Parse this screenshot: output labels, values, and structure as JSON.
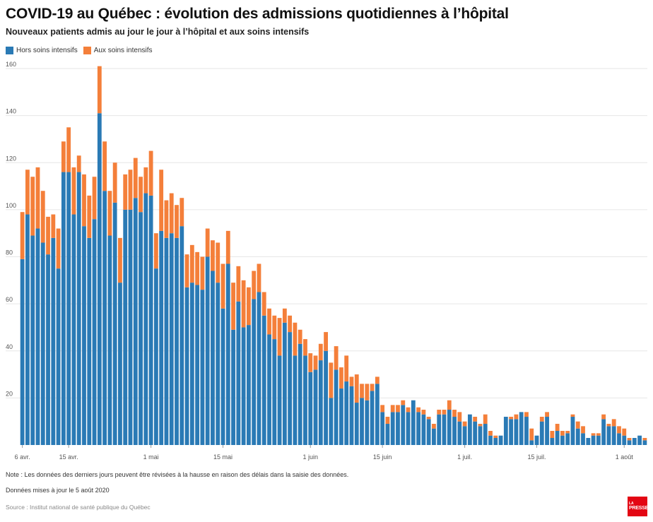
{
  "title": "COVID-19 au Québec : évolution des admissions quotidiennes à l’hôpital",
  "subtitle": "Nouveaux patients admis au jour le jour à l’hôpital et aux soins intensifs",
  "note": "Note : Les données des derniers jours peuvent être révisées à la hausse en raison des délais dans la saisie des données.",
  "updated": "Données mises à jour le 5 août 2020",
  "source": "Source : Institut national de santé publique du Québec",
  "logo": {
    "line1": "LA",
    "line2": "PRESSE"
  },
  "colors": {
    "hors": "#2a7ab5",
    "soins": "#f47f3a",
    "grid": "#e6e6e6"
  },
  "chart_data": {
    "type": "bar",
    "stacked": true,
    "ylim": [
      0,
      160
    ],
    "yticks": [
      20,
      40,
      60,
      80,
      100,
      120,
      140,
      160
    ],
    "grid": true,
    "legend_position": "top-left",
    "xticks": [
      {
        "label": "6 avr.",
        "index": 0
      },
      {
        "label": "15 avr.",
        "index": 9
      },
      {
        "label": "1 mai",
        "index": 25
      },
      {
        "label": "15 mai",
        "index": 39
      },
      {
        "label": "1 juin",
        "index": 56
      },
      {
        "label": "15 juin",
        "index": 70
      },
      {
        "label": "1 juil.",
        "index": 86
      },
      {
        "label": "15 juil.",
        "index": 100
      },
      {
        "label": "1 août",
        "index": 117
      }
    ],
    "series": [
      {
        "name": "Hors soins intensifs",
        "values": [
          79,
          98,
          89,
          92,
          86,
          81,
          88,
          75,
          116,
          116,
          98,
          116,
          93,
          88,
          96,
          141,
          108,
          89,
          103,
          69,
          100,
          100,
          105,
          99,
          107,
          106,
          75,
          91,
          88,
          90,
          88,
          93,
          67,
          69,
          68,
          66,
          80,
          74,
          69,
          58,
          77,
          49,
          61,
          50,
          51,
          62,
          65,
          55,
          47,
          45,
          38,
          52,
          48,
          38,
          43,
          38,
          31,
          32,
          36,
          40,
          20,
          32,
          24,
          27,
          25,
          18,
          20,
          19,
          23,
          26,
          14,
          9,
          14,
          14,
          17,
          14,
          19,
          14,
          13,
          11,
          7,
          13,
          13,
          15,
          12,
          10,
          8,
          13,
          10,
          8,
          9,
          4,
          3,
          4,
          12,
          11,
          11,
          14,
          12,
          2,
          4,
          10,
          12,
          3,
          6,
          4,
          5,
          12,
          7,
          5,
          3,
          4,
          4,
          11,
          8,
          8,
          5,
          4,
          2,
          3,
          4,
          2
        ],
        "total": [
          99,
          117,
          114,
          118,
          108,
          97,
          98,
          92,
          129,
          135,
          118,
          123,
          115,
          106,
          114,
          161,
          129,
          108,
          120,
          88,
          115,
          117,
          122,
          114,
          118,
          125,
          90,
          117,
          104,
          107,
          102,
          105,
          81,
          85,
          82,
          80,
          92,
          87,
          86,
          77,
          91,
          69,
          76,
          70,
          67,
          74,
          77,
          65,
          58,
          55,
          54,
          58,
          55,
          52,
          49,
          45,
          39,
          38,
          43,
          48,
          35,
          42,
          33,
          38,
          29,
          30,
          26,
          26,
          26,
          29,
          17,
          12,
          17,
          17,
          19,
          16,
          19,
          16,
          15,
          12,
          9,
          15,
          15,
          19,
          15,
          14,
          10,
          13,
          12,
          9,
          13,
          6,
          4,
          4,
          12,
          12,
          13,
          14,
          14,
          7,
          4,
          12,
          14,
          6,
          9,
          6,
          6,
          13,
          10,
          8,
          3,
          5,
          5,
          13,
          9,
          11,
          8,
          7,
          3,
          3,
          4,
          3
        ]
      }
    ],
    "series_display": [
      {
        "name": "Hors soins intensifs",
        "color": "#2a7ab5"
      },
      {
        "name": "Aux soins intensifs",
        "color": "#f47f3a"
      }
    ]
  }
}
